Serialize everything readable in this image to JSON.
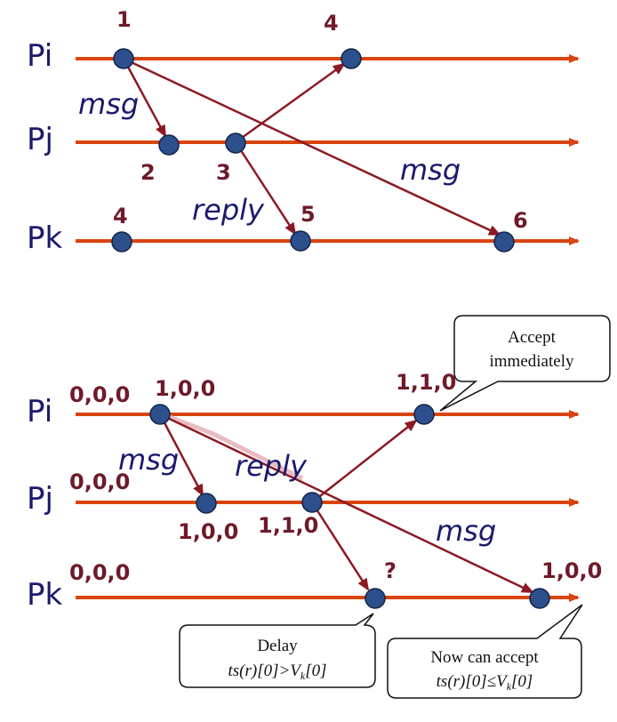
{
  "top": {
    "processes": [
      "Pi",
      "Pj",
      "Pk"
    ],
    "events": {
      "e1": "1",
      "e2": "2",
      "e3": "3",
      "e4": "4",
      "e5": "5",
      "e6": "6",
      "ek4": "4"
    },
    "labels": {
      "msg1": "msg",
      "msg2": "msg",
      "reply": "reply"
    }
  },
  "bottom": {
    "processes": [
      "Pi",
      "Pj",
      "Pk"
    ],
    "initial": {
      "pi": "0,0,0",
      "pj": "0,0,0",
      "pk": "0,0,0"
    },
    "events": {
      "pi1": "1,0,0",
      "pi2": "1,1,0",
      "pj1": "1,0,0",
      "pj2": "1,1,0",
      "pk1": "?",
      "pk2": "1,0,0"
    },
    "labels": {
      "msg1": "msg",
      "msg2": "msg",
      "reply": "reply"
    },
    "callouts": {
      "accept": {
        "line1": "Accept",
        "line2": "immediately"
      },
      "delay": {
        "line1": "Delay",
        "line2": "ts(r)[0]>V",
        "sub": "k",
        "tail": "[0]"
      },
      "now": {
        "line1": "Now can accept",
        "line2": "ts(r)[0]≤V",
        "sub": "k",
        "tail": "[0]"
      }
    }
  },
  "colors": {
    "timeline": "#d9440f",
    "arrow": "#8b1a24",
    "node": "#2d4f8c",
    "text": "#1a1a6e",
    "num": "#6e1a2a"
  }
}
